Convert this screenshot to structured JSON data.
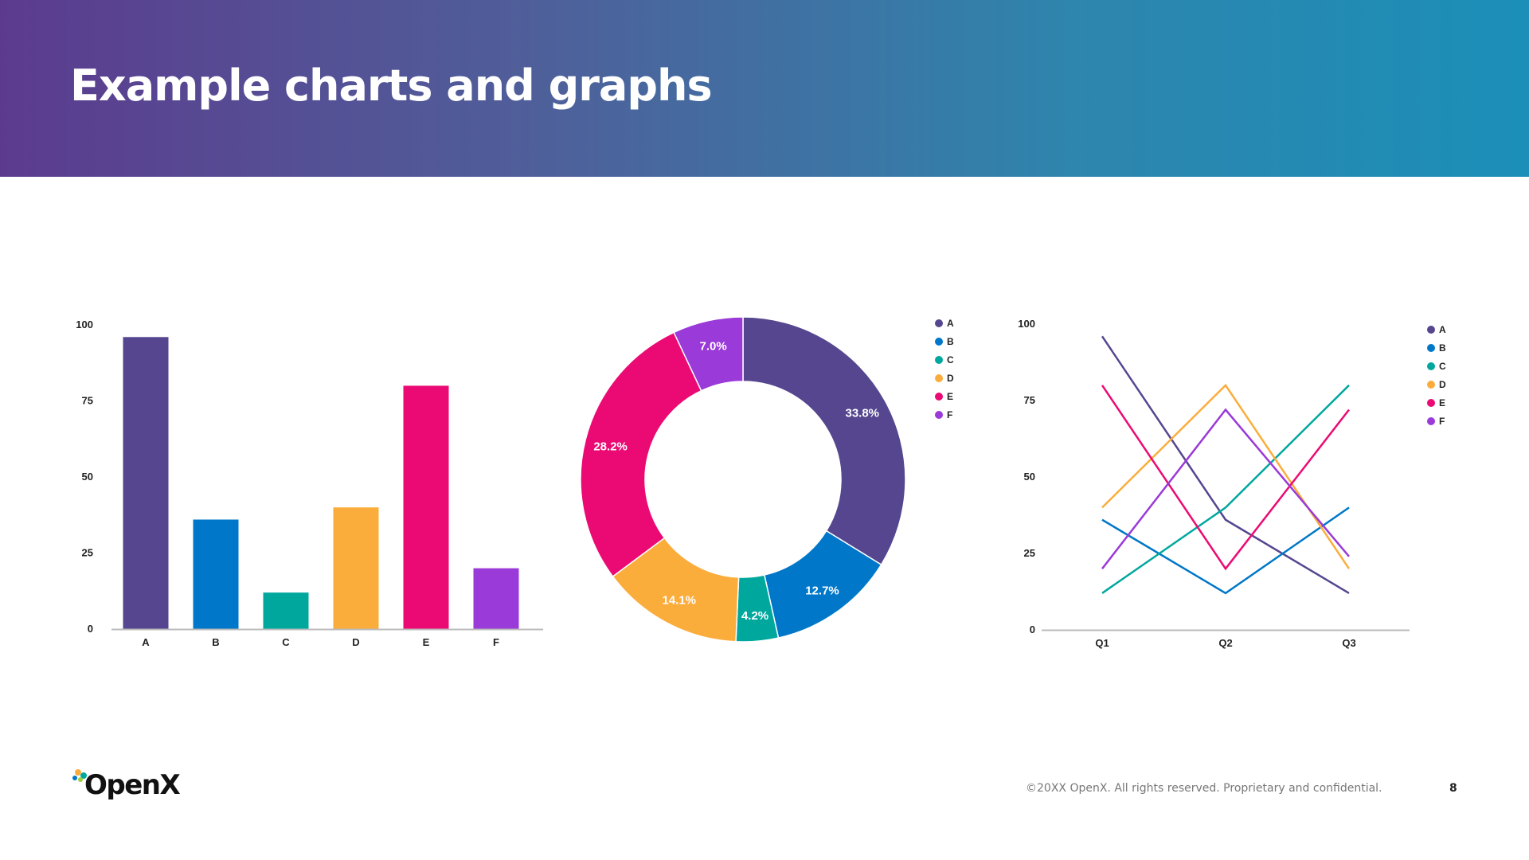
{
  "slide": {
    "title": "Example charts and graphs",
    "logo_text": "OpenX",
    "copyright": "©20XX OpenX. All rights reserved. Proprietary and confidential.",
    "page_number": "8"
  },
  "colors": {
    "A": "#56468f",
    "B": "#0077c8",
    "C": "#00a79d",
    "D": "#fbad3c",
    "E": "#eb0a73",
    "F": "#9a3ad8"
  },
  "chart_data": [
    {
      "type": "bar",
      "categories": [
        "A",
        "B",
        "C",
        "D",
        "E",
        "F"
      ],
      "values": [
        96,
        36,
        12,
        40,
        80,
        20
      ],
      "ylim": [
        0,
        100
      ],
      "yticks": [
        0,
        25,
        50,
        75,
        100
      ],
      "xlabel": "",
      "ylabel": "",
      "grid": false,
      "legend": "none"
    },
    {
      "type": "pie",
      "donut": true,
      "labels": [
        "A",
        "B",
        "C",
        "D",
        "E",
        "F"
      ],
      "values": [
        33.8,
        12.7,
        4.2,
        14.1,
        28.2,
        7.0
      ],
      "value_labels": [
        "33.8%",
        "12.7%",
        "4.2%",
        "14.1%",
        "28.2%",
        "7.0%"
      ],
      "legend": "right",
      "legend_entries": [
        "A",
        "B",
        "C",
        "D",
        "E",
        "F"
      ]
    },
    {
      "type": "line",
      "categories": [
        "Q1",
        "Q2",
        "Q3"
      ],
      "series": [
        {
          "name": "A",
          "values": [
            96,
            36,
            12
          ]
        },
        {
          "name": "B",
          "values": [
            36,
            12,
            40
          ]
        },
        {
          "name": "C",
          "values": [
            12,
            40,
            80
          ]
        },
        {
          "name": "D",
          "values": [
            40,
            80,
            20
          ]
        },
        {
          "name": "E",
          "values": [
            80,
            20,
            72
          ]
        },
        {
          "name": "F",
          "values": [
            20,
            72,
            24
          ]
        }
      ],
      "ylim": [
        0,
        100
      ],
      "yticks": [
        0,
        25,
        50,
        75,
        100
      ],
      "xlabel": "",
      "ylabel": "",
      "grid": false,
      "legend": "right",
      "legend_entries": [
        "A",
        "B",
        "C",
        "D",
        "E",
        "F"
      ]
    }
  ]
}
